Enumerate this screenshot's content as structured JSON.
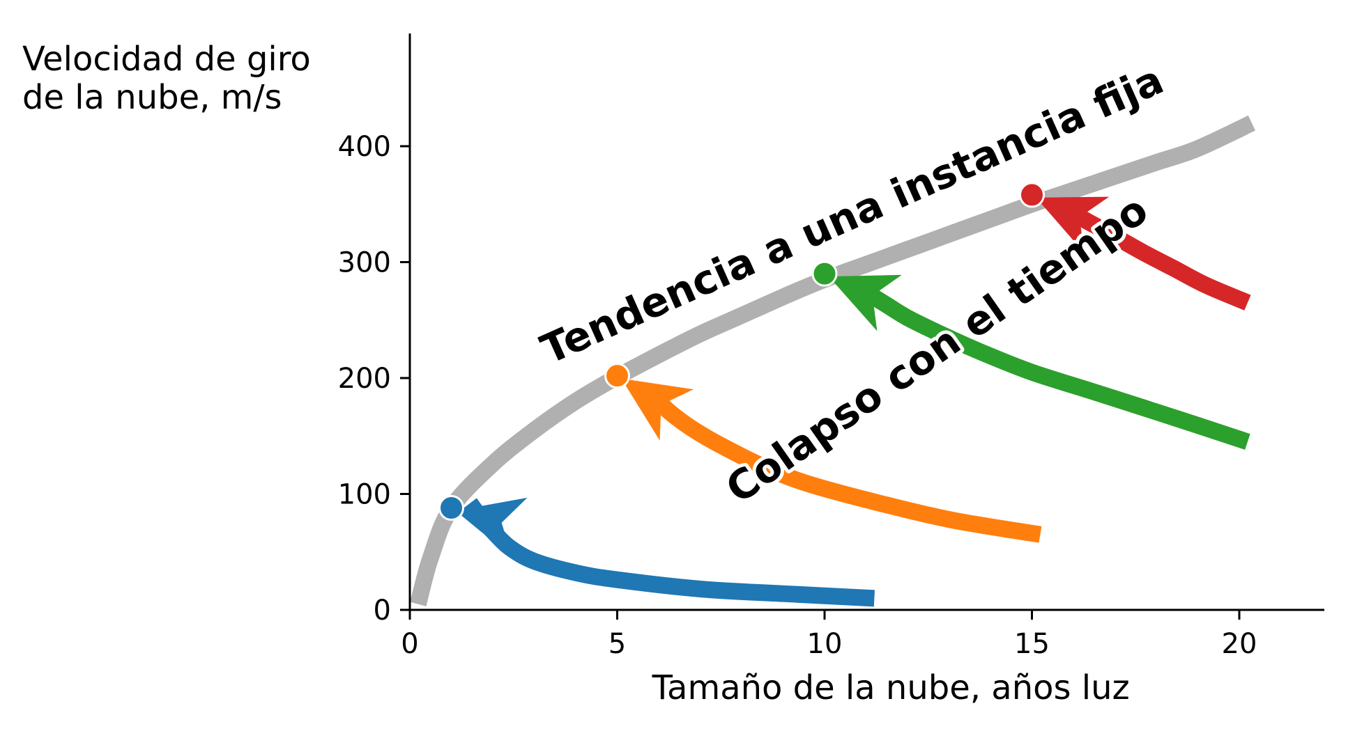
{
  "chart_data": {
    "type": "line",
    "x": {
      "label": "Tamaño de la nube, años luz",
      "ticks": [
        "0",
        "5",
        "10",
        "15",
        "20"
      ],
      "range": [
        0,
        22
      ]
    },
    "y": {
      "label_lines": [
        "Velocidad de giro",
        "de la nube, m/s"
      ],
      "ticks": [
        "0",
        "100",
        "200",
        "300",
        "400"
      ],
      "range": [
        0,
        490
      ]
    },
    "grid": false,
    "legend": "none",
    "trend": {
      "color": "#b0b0b0",
      "x": [
        0.2,
        0.5,
        1,
        2,
        3,
        4,
        5,
        6,
        7,
        8,
        9,
        10,
        11,
        12,
        13,
        14,
        15,
        16,
        17,
        18,
        19,
        20.3
      ],
      "y": [
        5,
        45,
        88,
        126,
        155,
        180,
        201,
        220,
        238,
        254,
        270,
        285,
        298,
        311,
        324,
        337,
        350,
        362,
        374,
        386,
        398,
        420
      ]
    },
    "series": [
      {
        "color": "#1f77b4",
        "end_point": {
          "x": 1,
          "y": 88
        },
        "curve_x": [
          11.2,
          9,
          7,
          5,
          4,
          3,
          2.4,
          2,
          1.7,
          1.45
        ],
        "curve_y": [
          10,
          14,
          18,
          26,
          32,
          42,
          54,
          68,
          80,
          92
        ]
      },
      {
        "color": "#ff7f0e",
        "end_point": {
          "x": 5,
          "y": 202
        },
        "curve_x": [
          15.2,
          13,
          11,
          9.5,
          8.5,
          7.6,
          7,
          6.5,
          6.1,
          5.8
        ],
        "curve_y": [
          65,
          78,
          95,
          110,
          124,
          140,
          152,
          164,
          176,
          188
        ]
      },
      {
        "color": "#2ca02c",
        "end_point": {
          "x": 10,
          "y": 290
        },
        "curve_x": [
          20.2,
          18.5,
          16.5,
          15,
          13.8,
          12.8,
          12,
          11.5,
          11.1,
          10.8
        ],
        "curve_y": [
          145,
          165,
          188,
          205,
          222,
          238,
          252,
          263,
          272,
          279
        ]
      },
      {
        "color": "#d62728",
        "end_point": {
          "x": 15,
          "y": 358
        },
        "curve_x": [
          20.2,
          19.2,
          18.4,
          17.7,
          17.1,
          16.6,
          16.2,
          15.9
        ],
        "curve_y": [
          265,
          280,
          295,
          308,
          320,
          330,
          338,
          345
        ]
      }
    ],
    "annotations": [
      {
        "text": "Tendencia a una instancia fija",
        "at_x": 10.8,
        "at_y": 330,
        "angle": -24
      },
      {
        "text": "Colapso con el tiempo",
        "at_x": 12.9,
        "at_y": 215,
        "angle": -35
      }
    ]
  }
}
